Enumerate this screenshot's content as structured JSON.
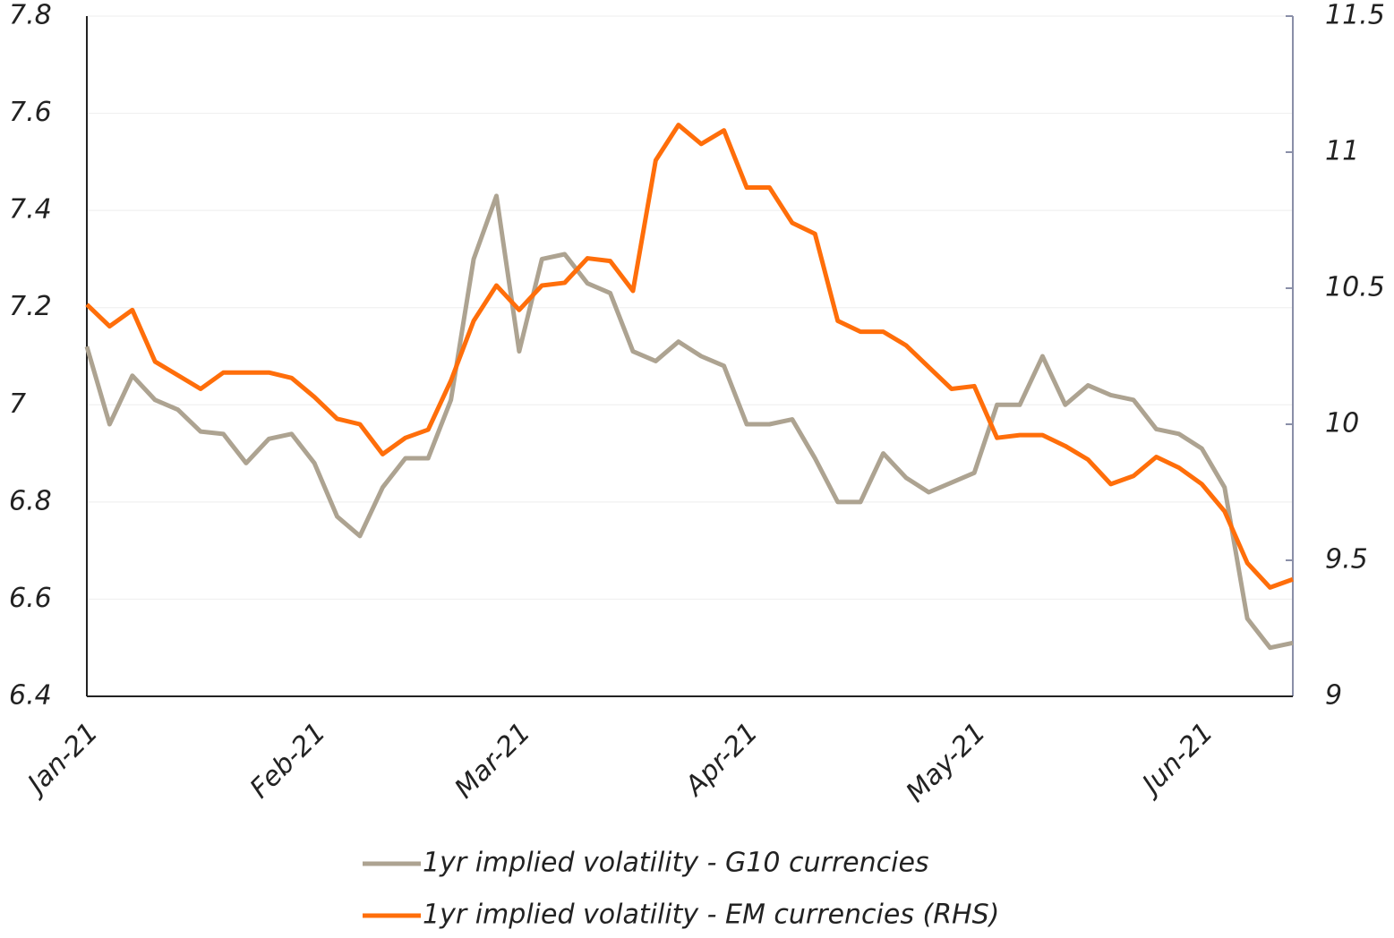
{
  "chart_data": {
    "type": "line",
    "categories": [
      "Jan-21",
      null,
      null,
      null,
      null,
      null,
      null,
      null,
      null,
      null,
      "Feb-21",
      null,
      null,
      null,
      null,
      null,
      null,
      null,
      null,
      "Mar-21",
      null,
      null,
      null,
      null,
      null,
      null,
      null,
      null,
      null,
      "Apr-21",
      null,
      null,
      null,
      null,
      null,
      null,
      null,
      null,
      null,
      "May-21",
      null,
      null,
      null,
      null,
      null,
      null,
      null,
      null,
      null,
      "Jun-21",
      null,
      null,
      null,
      null
    ],
    "series": [
      {
        "name": "1yr implied volatility - G10 currencies",
        "color": "#ada391",
        "axis": "y",
        "values": [
          7.12,
          6.96,
          7.06,
          7.01,
          6.99,
          6.945,
          6.94,
          6.88,
          6.93,
          6.94,
          6.88,
          6.77,
          6.73,
          6.83,
          6.89,
          6.89,
          7.01,
          7.3,
          7.43,
          7.11,
          7.3,
          7.31,
          7.25,
          7.23,
          7.11,
          7.09,
          7.13,
          7.1,
          7.08,
          6.96,
          6.96,
          6.97,
          6.89,
          6.8,
          6.8,
          6.9,
          6.85,
          6.82,
          6.84,
          6.86,
          7.0,
          7.0,
          7.1,
          7.0,
          7.04,
          7.02,
          7.01,
          6.95,
          6.94,
          6.91,
          6.83,
          6.56,
          6.5,
          6.51
        ]
      },
      {
        "name": "1yr implied volatility - EM currencies (RHS)",
        "color": "#ff6e0a",
        "axis": "y2",
        "values": [
          10.44,
          10.36,
          10.42,
          10.23,
          10.18,
          10.13,
          10.19,
          10.19,
          10.19,
          10.17,
          10.1,
          10.02,
          10.0,
          9.89,
          9.95,
          9.98,
          10.16,
          10.38,
          10.51,
          10.42,
          10.51,
          10.52,
          10.61,
          10.6,
          10.49,
          10.97,
          11.1,
          11.03,
          11.08,
          10.87,
          10.87,
          10.74,
          10.7,
          10.38,
          10.34,
          10.34,
          10.29,
          10.21,
          10.13,
          10.14,
          9.95,
          9.96,
          9.96,
          9.92,
          9.87,
          9.78,
          9.81,
          9.88,
          9.84,
          9.78,
          9.68,
          9.49,
          9.4,
          9.43
        ]
      }
    ],
    "ylim": [
      6.4,
      7.8
    ],
    "yticks": [
      6.4,
      6.6,
      6.8,
      7,
      7.2,
      7.4,
      7.6,
      7.8
    ],
    "y2lim": [
      9,
      11.5
    ],
    "y2ticks": [
      9,
      9.5,
      10,
      10.5,
      11,
      11.5
    ],
    "grid": true,
    "legend": "bottom"
  }
}
